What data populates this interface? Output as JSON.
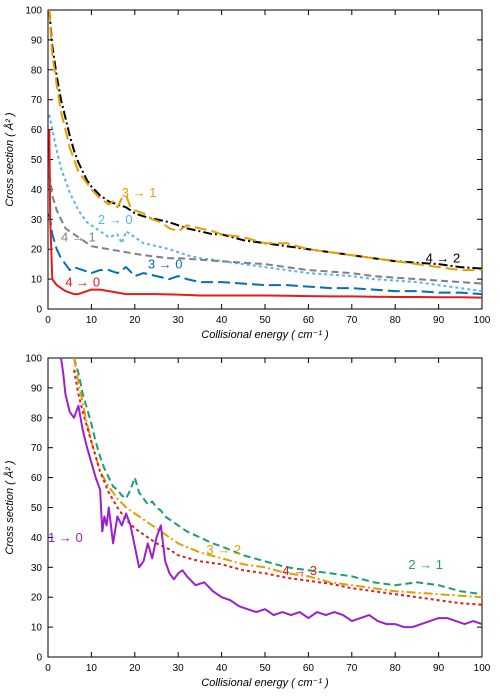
{
  "chart_data": [
    {
      "type": "line",
      "xlabel": "Collisional energy ( cm⁻¹ )",
      "ylabel": "Cross section ( Å² )",
      "xlim": [
        0,
        100
      ],
      "ylim": [
        0,
        100
      ],
      "xticks": [
        0,
        10,
        20,
        30,
        40,
        50,
        60,
        70,
        80,
        90,
        100
      ],
      "yticks": [
        0,
        10,
        20,
        30,
        40,
        50,
        60,
        70,
        80,
        90,
        100
      ],
      "grid": false,
      "legend": "none",
      "series": [
        {
          "name": "4 → 2",
          "color": "#000000",
          "dash": "dash-dot",
          "label_at": [
            91,
            15.5
          ],
          "x": [
            0.3,
            1,
            2,
            3,
            4,
            5,
            6,
            7,
            8,
            9,
            10,
            12,
            14,
            16,
            18,
            20,
            22,
            25,
            28,
            30,
            32,
            35,
            38,
            40,
            45,
            50,
            55,
            60,
            65,
            70,
            75,
            80,
            85,
            90,
            95,
            100
          ],
          "y": [
            100,
            88,
            78,
            70,
            64,
            58,
            53,
            49,
            46,
            43,
            41,
            38,
            36,
            35,
            34,
            32,
            31,
            30,
            29,
            28,
            27,
            26,
            25,
            25,
            23,
            22,
            21,
            20,
            19,
            18,
            17,
            16,
            15.5,
            15,
            14,
            13.5
          ]
        },
        {
          "name": "3 → 1",
          "color": "#E0A000",
          "dash": "long-dash",
          "label_at": [
            21,
            37.5
          ],
          "x": [
            0.3,
            1,
            2,
            3,
            4,
            5,
            6,
            7,
            8,
            9,
            10,
            12,
            14,
            15,
            16,
            17,
            18,
            19,
            20,
            22,
            24,
            26,
            28,
            30,
            32,
            35,
            38,
            40,
            45,
            50,
            55,
            60,
            65,
            70,
            75,
            80,
            85,
            90,
            95,
            100
          ],
          "y": [
            100,
            85,
            75,
            66,
            60,
            54,
            50,
            46,
            44,
            42,
            40,
            37,
            35,
            36,
            34,
            37,
            38,
            34,
            33,
            32,
            30,
            29,
            27,
            26,
            28,
            27,
            26,
            25,
            24,
            22,
            22,
            20,
            19,
            18,
            17,
            16,
            15,
            14,
            13,
            13
          ]
        },
        {
          "name": "2 → 0",
          "color": "#56B4E9",
          "dash": "dot",
          "label_at": [
            15.5,
            28.5
          ],
          "x": [
            0.3,
            1,
            2,
            3,
            4,
            5,
            6,
            7,
            8,
            9,
            10,
            12,
            14,
            16,
            17,
            18,
            20,
            22,
            25,
            28,
            30,
            32,
            35,
            38,
            40,
            45,
            50,
            55,
            60,
            65,
            70,
            75,
            80,
            85,
            90,
            95,
            100
          ],
          "y": [
            65,
            60,
            53,
            47,
            43,
            39,
            36,
            33,
            31,
            29,
            28,
            26,
            24,
            25,
            22,
            26,
            24,
            22,
            21,
            20,
            19,
            18,
            17,
            16.5,
            16,
            15,
            14,
            13,
            12,
            11.5,
            11,
            10,
            9.5,
            9,
            8,
            7,
            6
          ]
        },
        {
          "name": "4 → 1",
          "color": "#808080",
          "dash": "dash",
          "label_at": [
            7,
            22.5
          ],
          "x": [
            0.3,
            1,
            2,
            3,
            4,
            5,
            6,
            7,
            8,
            9,
            10,
            12,
            14,
            16,
            18,
            20,
            22,
            25,
            28,
            30,
            35,
            40,
            45,
            50,
            55,
            60,
            65,
            70,
            75,
            80,
            85,
            90,
            95,
            100
          ],
          "y": [
            45,
            38,
            33,
            30,
            27,
            26,
            25,
            24,
            23,
            22,
            21,
            20.5,
            20,
            19.5,
            19,
            18.5,
            18,
            17.5,
            17,
            17,
            16.5,
            16,
            15.5,
            15,
            14,
            13,
            12.5,
            12,
            11,
            10.5,
            10,
            9.5,
            9,
            8.5
          ]
        },
        {
          "name": "3 → 0",
          "color": "#0072B2",
          "dash": "long-dash",
          "label_at": [
            27,
            13.5
          ],
          "x": [
            0.3,
            1,
            2,
            3,
            4,
            5,
            6,
            8,
            10,
            12,
            14,
            16,
            18,
            20,
            22,
            25,
            28,
            30,
            32,
            35,
            40,
            45,
            50,
            55,
            60,
            65,
            70,
            75,
            80,
            85,
            90,
            95,
            100
          ],
          "y": [
            32,
            25,
            20,
            17,
            15,
            13,
            14,
            13,
            12,
            13,
            13,
            12,
            14,
            11,
            12,
            11,
            10,
            11,
            10,
            9,
            9,
            8.5,
            8,
            8,
            7.5,
            7,
            7,
            6.5,
            6,
            6,
            5.5,
            5.5,
            5
          ]
        },
        {
          "name": "4 → 0",
          "color": "#E41A1C",
          "dash": "solid",
          "label_at": [
            8,
            7.5
          ],
          "x": [
            0.3,
            0.5,
            1,
            2,
            3,
            4,
            5,
            6,
            7,
            8,
            9,
            10,
            12,
            14,
            16,
            18,
            20,
            25,
            30,
            35,
            40,
            45,
            50,
            55,
            60,
            65,
            70,
            75,
            80,
            85,
            90,
            95,
            100
          ],
          "y": [
            60,
            30,
            10,
            8,
            7,
            6,
            5.5,
            5,
            5,
            5.5,
            6,
            6.5,
            6.5,
            6,
            5.5,
            5,
            5,
            5,
            4.8,
            4.5,
            4.5,
            4.5,
            4.5,
            4.4,
            4.3,
            4.2,
            4.2,
            4.1,
            4,
            4,
            3.9,
            3.9,
            3.8
          ]
        }
      ]
    },
    {
      "type": "line",
      "xlabel": "Collisional energy ( cm⁻¹ )",
      "ylabel": "Cross section ( Å² )",
      "xlim": [
        0,
        100
      ],
      "ylim": [
        0,
        100
      ],
      "xticks": [
        0,
        10,
        20,
        30,
        40,
        50,
        60,
        70,
        80,
        90,
        100
      ],
      "yticks": [
        0,
        10,
        20,
        30,
        40,
        50,
        60,
        70,
        80,
        90,
        100
      ],
      "grid": false,
      "legend": "none",
      "series": [
        {
          "name": "2 → 1",
          "color": "#1B9E77",
          "dash": "dash",
          "label_at": [
            87,
            29.5
          ],
          "x": [
            6,
            7,
            8,
            9,
            10,
            11,
            12,
            13,
            14,
            15,
            16,
            17,
            18,
            19,
            20,
            21,
            22,
            23,
            24,
            25,
            26,
            27,
            28,
            30,
            32,
            35,
            38,
            40,
            45,
            50,
            55,
            60,
            65,
            70,
            75,
            80,
            85,
            90,
            95,
            100
          ],
          "y": [
            100,
            95,
            88,
            83,
            78,
            72,
            67,
            63,
            60,
            57,
            56,
            54,
            53,
            56,
            60,
            55,
            53,
            51,
            52,
            50,
            49,
            47,
            46,
            44,
            42,
            40,
            38,
            37,
            34,
            32,
            30,
            29,
            28,
            27,
            25,
            24,
            25,
            24,
            22,
            21
          ]
        },
        {
          "name": "3 → 2",
          "color": "#E0A000",
          "dash": "dash-dot",
          "label_at": [
            40.5,
            34.5
          ],
          "x": [
            6,
            7,
            8,
            9,
            10,
            12,
            14,
            16,
            18,
            20,
            22,
            25,
            28,
            30,
            35,
            40,
            45,
            50,
            55,
            60,
            65,
            70,
            75,
            80,
            85,
            90,
            95,
            100
          ],
          "y": [
            100,
            92,
            85,
            78,
            72,
            62,
            57,
            53,
            50,
            48,
            46,
            43,
            40,
            38,
            35,
            33,
            31,
            30,
            28,
            27,
            25,
            24,
            23,
            22,
            21.5,
            21,
            20.5,
            20
          ]
        },
        {
          "name": "4 → 3",
          "color": "#E41A1C",
          "dash": "dot",
          "label_at": [
            58,
            27.5
          ],
          "x": [
            6,
            7,
            8,
            9,
            10,
            12,
            14,
            16,
            18,
            20,
            22,
            25,
            28,
            30,
            35,
            40,
            45,
            50,
            55,
            60,
            65,
            70,
            75,
            80,
            85,
            90,
            95,
            100
          ],
          "y": [
            96,
            88,
            82,
            77,
            72,
            62,
            55,
            50,
            46,
            43,
            41,
            38,
            36,
            34,
            32,
            31,
            29,
            28,
            26.5,
            25.5,
            24.5,
            23,
            22,
            21,
            20,
            19,
            18,
            17.5
          ]
        },
        {
          "name": "1 → 0",
          "color": "#9A1FCE",
          "dash": "solid",
          "label_at": [
            4,
            38.5
          ],
          "x": [
            3,
            3.5,
            4,
            5,
            6,
            7,
            8,
            9,
            10,
            11,
            12,
            12.5,
            13,
            13.5,
            14,
            15,
            16,
            17,
            18,
            19,
            20,
            21,
            22,
            23,
            24,
            25,
            26,
            27,
            28,
            29,
            30,
            31,
            32,
            34,
            36,
            38,
            40,
            42,
            44,
            46,
            48,
            50,
            52,
            54,
            56,
            58,
            60,
            62,
            64,
            66,
            68,
            70,
            72,
            74,
            76,
            78,
            80,
            82,
            84,
            86,
            88,
            90,
            92,
            94,
            96,
            98,
            100
          ],
          "y": [
            100,
            95,
            88,
            82,
            80,
            84,
            76,
            70,
            65,
            60,
            56,
            42,
            47,
            44,
            50,
            38,
            47,
            44,
            48,
            44,
            37,
            30,
            32,
            38,
            33,
            40,
            44,
            32,
            28,
            26,
            28,
            29,
            27,
            24,
            25,
            22,
            20,
            19,
            17,
            16,
            15,
            16,
            14,
            15,
            14,
            15,
            13,
            15,
            14,
            15,
            14,
            12,
            13,
            14,
            12,
            11,
            11,
            10,
            10,
            11,
            12,
            13,
            13,
            12,
            11,
            12,
            11
          ]
        }
      ]
    }
  ]
}
